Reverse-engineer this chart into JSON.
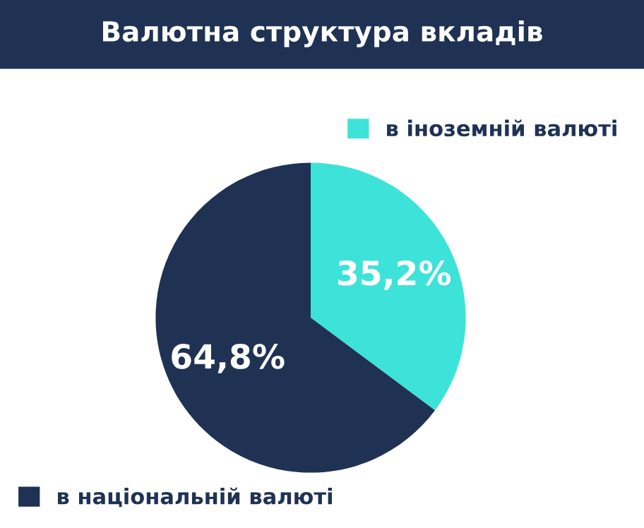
{
  "chart_data": {
    "type": "pie",
    "title": "Валютна структура вкладів",
    "categories": [
      "в іноземній валюті",
      "в національній валюті"
    ],
    "values": [
      35.2,
      64.8
    ],
    "colors": [
      "#3de3d8",
      "#1f3253"
    ],
    "value_labels": [
      "35,2%",
      "64,8%"
    ],
    "legend": "top right"
  }
}
